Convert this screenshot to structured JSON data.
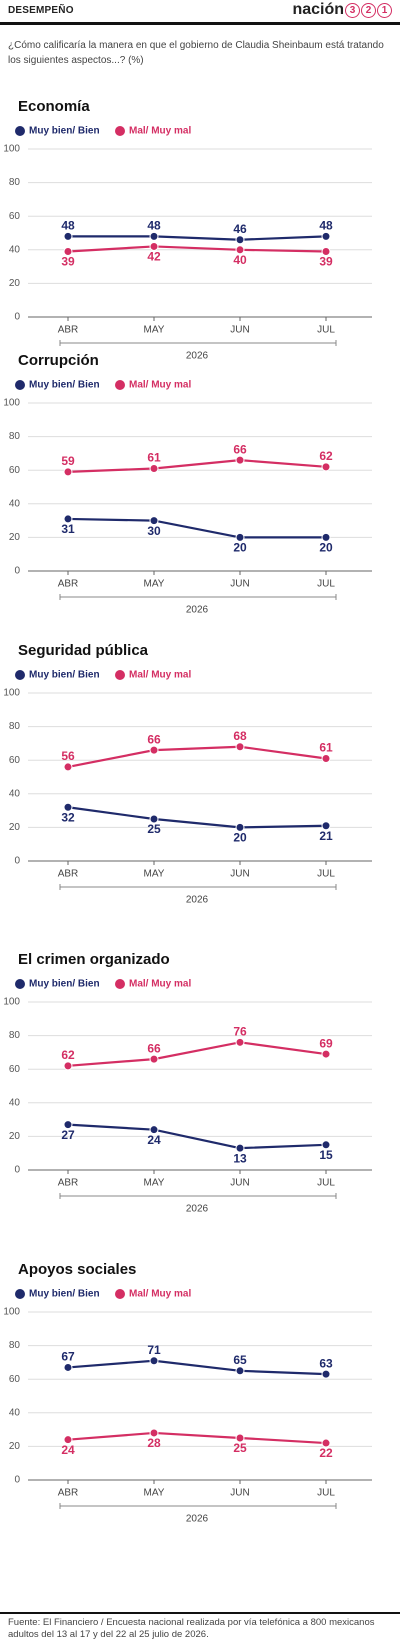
{
  "header": {
    "section": "DESEMPEÑO",
    "logo": "nación",
    "logo_digits": [
      "3",
      "2",
      "1"
    ]
  },
  "subtitle": "¿Cómo calificaría la manera en que el gobierno de Claudia Sheinbaum está tratando los siguientes aspectos...? (%)",
  "chart_data": [
    {
      "type": "line",
      "title": "Economía",
      "categories": [
        "ABR",
        "MAY",
        "JUN",
        "JUL"
      ],
      "x_label": "2026",
      "ylim": [
        0,
        100
      ],
      "yticks": [
        0,
        20,
        40,
        60,
        80,
        100
      ],
      "grid": true,
      "series": [
        {
          "name": "Muy bien/ Bien",
          "color": "#1f2a6b",
          "values": [
            48,
            48,
            46,
            48
          ]
        },
        {
          "name": "Mal/ Muy mal",
          "color": "#d42e63",
          "values": [
            39,
            42,
            40,
            39
          ]
        }
      ]
    },
    {
      "type": "line",
      "title": "Corrupción",
      "categories": [
        "ABR",
        "MAY",
        "JUN",
        "JUL"
      ],
      "x_label": "2026",
      "ylim": [
        0,
        100
      ],
      "yticks": [
        0,
        20,
        40,
        60,
        80,
        100
      ],
      "grid": true,
      "series": [
        {
          "name": "Muy bien/ Bien",
          "color": "#1f2a6b",
          "values": [
            31,
            30,
            20,
            20
          ]
        },
        {
          "name": "Mal/ Muy mal",
          "color": "#d42e63",
          "values": [
            59,
            61,
            66,
            62
          ]
        }
      ]
    },
    {
      "type": "line",
      "title": "Seguridad pública",
      "categories": [
        "ABR",
        "MAY",
        "JUN",
        "JUL"
      ],
      "x_label": "2026",
      "ylim": [
        0,
        100
      ],
      "yticks": [
        0,
        20,
        40,
        60,
        80,
        100
      ],
      "grid": true,
      "series": [
        {
          "name": "Muy bien/ Bien",
          "color": "#1f2a6b",
          "values": [
            32,
            25,
            20,
            21
          ]
        },
        {
          "name": "Mal/ Muy mal",
          "color": "#d42e63",
          "values": [
            56,
            66,
            68,
            61
          ]
        }
      ]
    },
    {
      "type": "line",
      "title": "El crimen organizado",
      "categories": [
        "ABR",
        "MAY",
        "JUN",
        "JUL"
      ],
      "x_label": "2026",
      "ylim": [
        0,
        100
      ],
      "yticks": [
        0,
        20,
        40,
        60,
        80,
        100
      ],
      "grid": true,
      "series": [
        {
          "name": "Muy bien/ Bien",
          "color": "#1f2a6b",
          "values": [
            27,
            24,
            13,
            15
          ]
        },
        {
          "name": "Mal/ Muy mal",
          "color": "#d42e63",
          "values": [
            62,
            66,
            76,
            69
          ]
        }
      ]
    },
    {
      "type": "line",
      "title": "Apoyos sociales",
      "categories": [
        "ABR",
        "MAY",
        "JUN",
        "JUL"
      ],
      "x_label": "2026",
      "ylim": [
        0,
        100
      ],
      "yticks": [
        0,
        20,
        40,
        60,
        80,
        100
      ],
      "grid": true,
      "series": [
        {
          "name": "Muy bien/ Bien",
          "color": "#1f2a6b",
          "values": [
            67,
            71,
            65,
            63
          ]
        },
        {
          "name": "Mal/ Muy mal",
          "color": "#d42e63",
          "values": [
            24,
            28,
            25,
            22
          ]
        }
      ]
    }
  ],
  "footer": "Fuente: El Financiero / Encuesta nacional realizada por vía telefónica a 800 mexicanos adultos del 13 al 17 y del 22 al 25 julio de 2026."
}
